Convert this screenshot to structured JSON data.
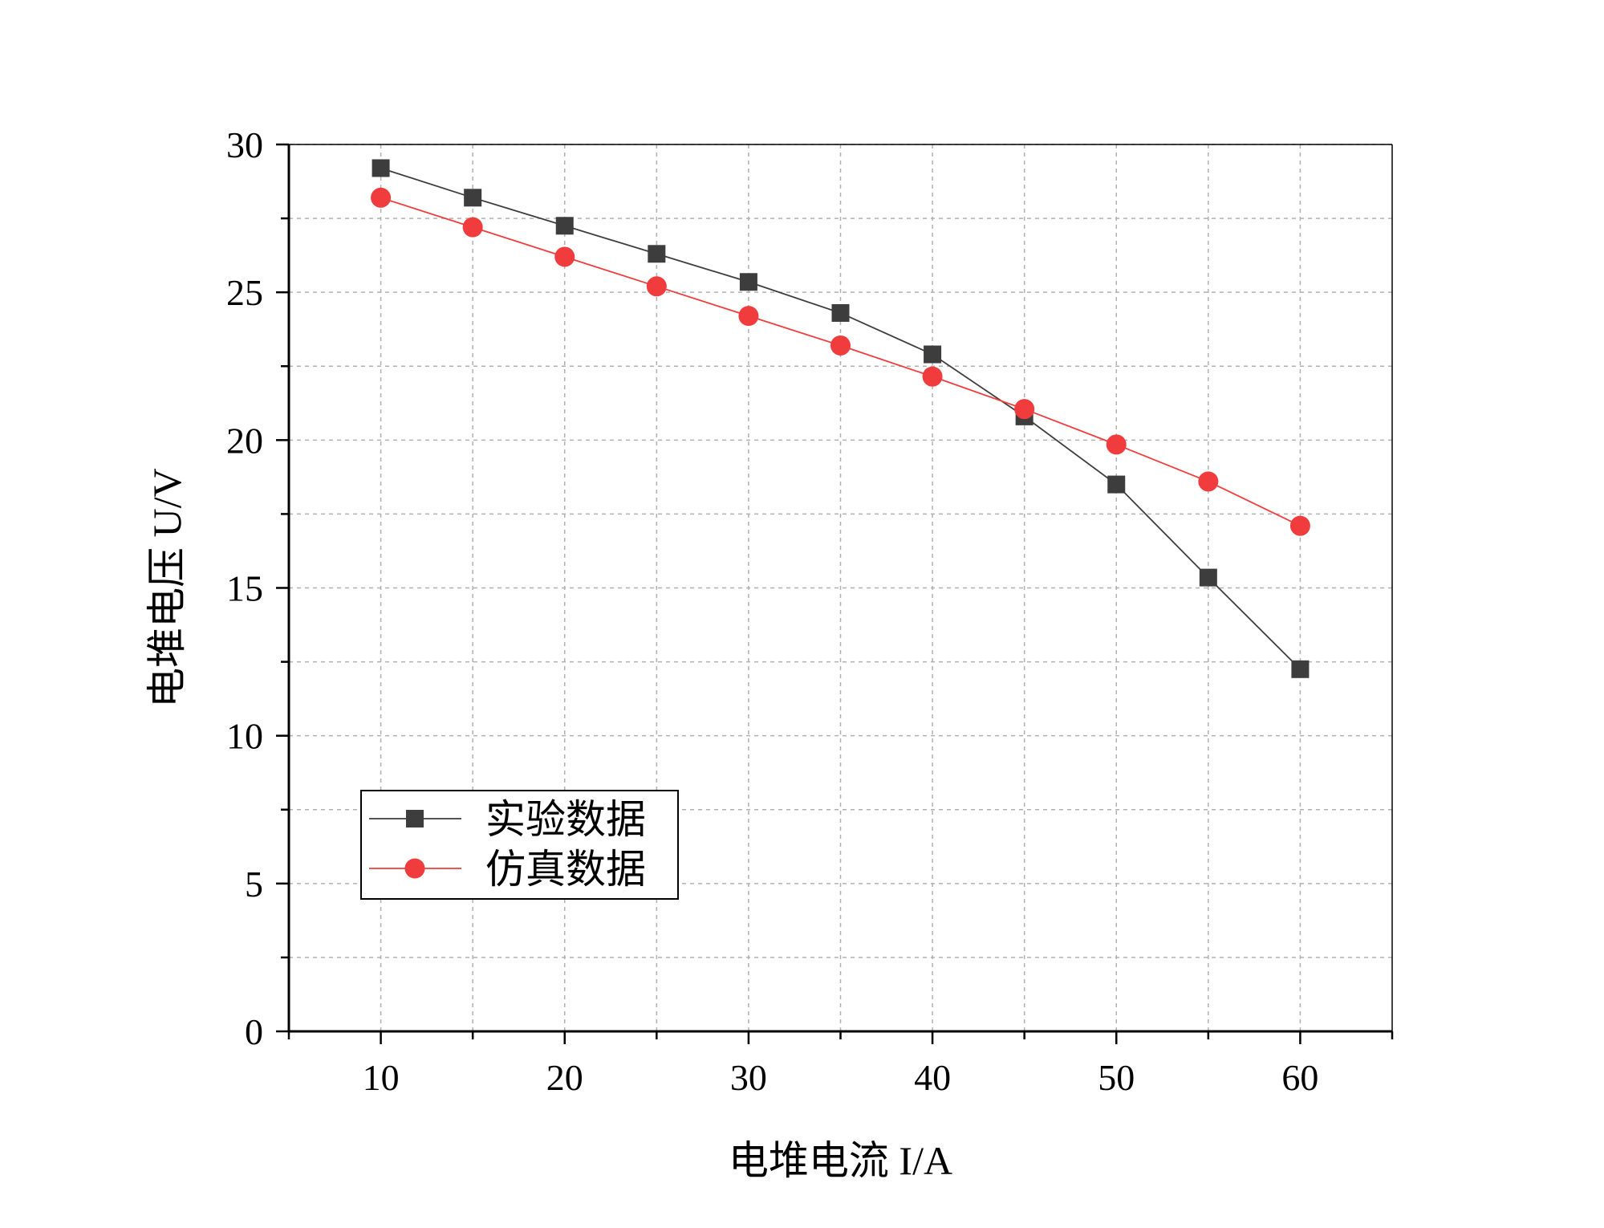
{
  "chart_data": {
    "type": "line",
    "title": "",
    "xlabel": "电堆电流  I/A",
    "ylabel": "电堆电压  U/V",
    "xlim": [
      5,
      65
    ],
    "ylim": [
      0,
      30
    ],
    "xticks": [
      10,
      20,
      30,
      40,
      50,
      60
    ],
    "yticks": [
      0,
      5,
      10,
      15,
      20,
      25,
      30
    ],
    "grid": true,
    "legend_position": "bottom-left",
    "x": [
      10,
      15,
      20,
      25,
      30,
      35,
      40,
      45,
      50,
      55,
      60
    ],
    "series": [
      {
        "name": "实验数据",
        "marker": "square",
        "color": "#3d3d3d",
        "values": [
          29.2,
          28.2,
          27.25,
          26.3,
          25.35,
          24.3,
          22.9,
          20.8,
          18.5,
          15.35,
          12.25
        ]
      },
      {
        "name": "仿真数据",
        "marker": "circle",
        "color": "#f03c3c",
        "values": [
          28.2,
          27.2,
          26.2,
          25.2,
          24.2,
          23.2,
          22.15,
          21.05,
          19.85,
          18.6,
          17.1
        ]
      }
    ]
  }
}
